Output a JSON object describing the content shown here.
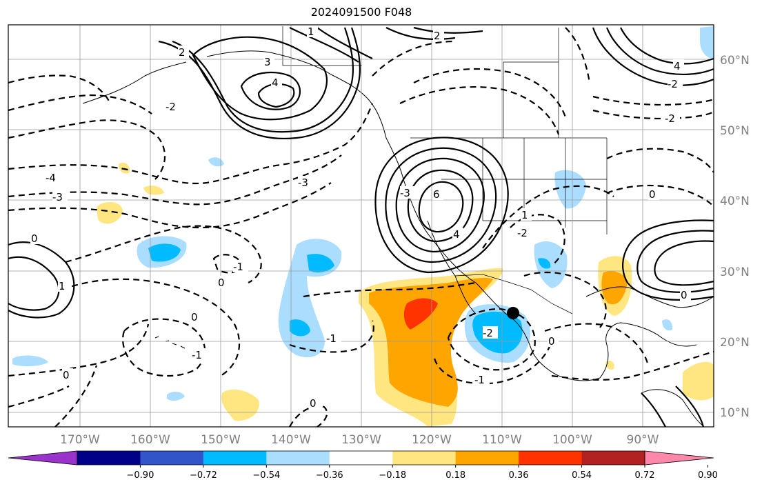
{
  "title": "2024091500 F048",
  "lat_labels": [
    "60°N",
    "50°N",
    "40°N",
    "30°N",
    "20°N",
    "10°N"
  ],
  "lon_labels": [
    "170°W",
    "160°W",
    "150°W",
    "140°W",
    "130°W",
    "120°W",
    "110°W",
    "100°W",
    "90°W"
  ],
  "colorbar": {
    "colors": [
      "#9933cc",
      "#000088",
      "#3355cc",
      "#00bbff",
      "#aaddff",
      "#ffffff",
      "#ffe680",
      "#ffa500",
      "#ff3300",
      "#b22222",
      "#ff88aa"
    ],
    "tick_labels": [
      "−0.90",
      "−0.72",
      "−0.54",
      "−0.36",
      "−0.18",
      "0.18",
      "0.36",
      "0.54",
      "0.72",
      "0.90"
    ]
  },
  "contour_labels": {
    "c1": "4",
    "c2": "3",
    "c3": "2",
    "c4": "1",
    "c5": "6",
    "c6": "4",
    "c7": "-4",
    "c8": "-3",
    "c9": "-3",
    "c10": "-2",
    "c11": "-1",
    "c12": "0",
    "c13": "0",
    "c14": "-1",
    "c15": "-2",
    "c16": "-1",
    "c17": "0",
    "c18": "0",
    "c19": "0",
    "c20": "2",
    "c21": "4",
    "c22": "-2",
    "c23": "0",
    "c24": "-2",
    "c25": "1",
    "c26": "0",
    "c27": "-1",
    "c28": "1",
    "c29": "0",
    "c30": "-2",
    "c31": "-3"
  },
  "marker": "storm-center-dot"
}
